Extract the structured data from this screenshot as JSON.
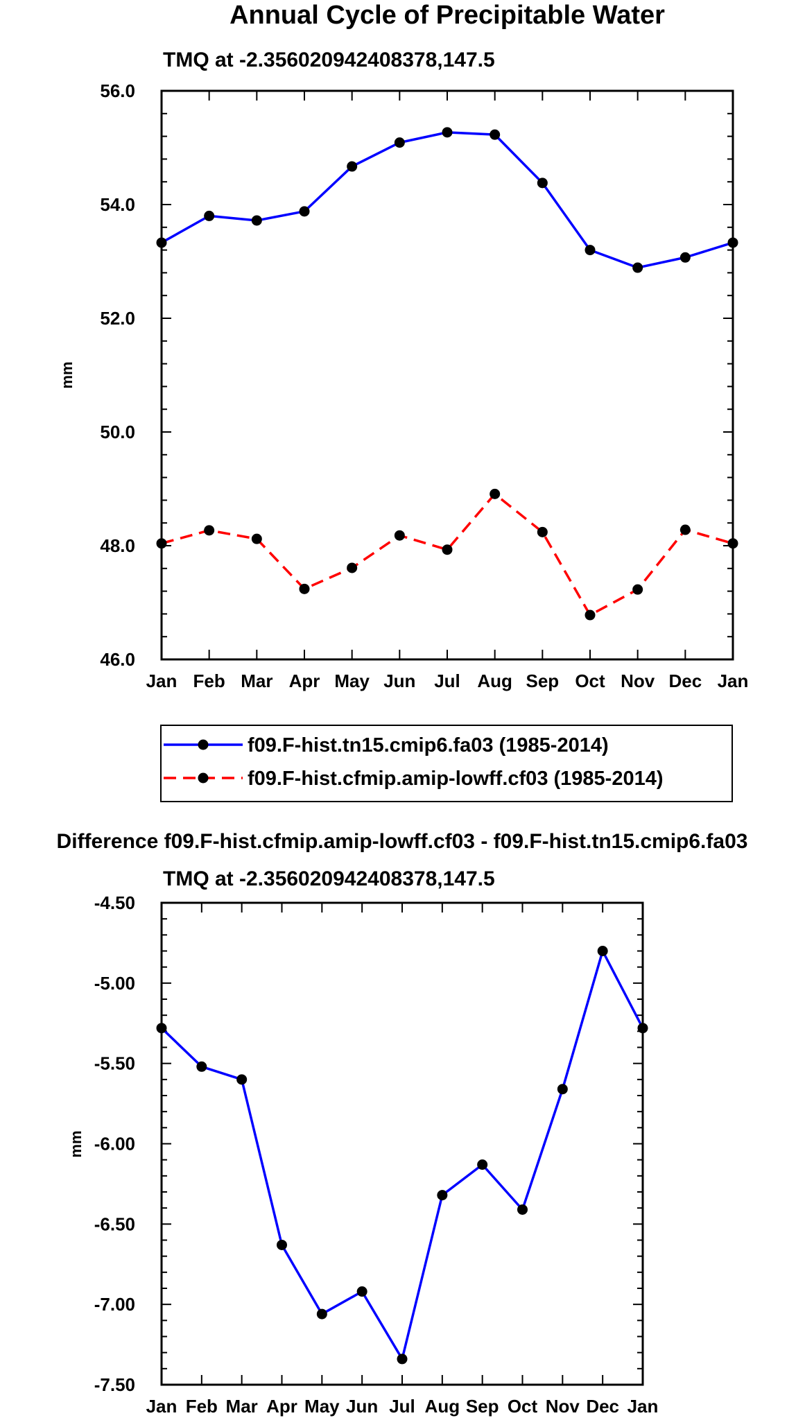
{
  "figure": {
    "title": "Annual Cycle of Precipitable Water"
  },
  "chart_data": [
    {
      "type": "line",
      "subtitle": "TMQ at -2.356020942408378,147.5",
      "ylabel": "mm",
      "xlabel": "",
      "categories": [
        "Jan",
        "Feb",
        "Mar",
        "Apr",
        "May",
        "Jun",
        "Jul",
        "Aug",
        "Sep",
        "Oct",
        "Nov",
        "Dec",
        "Jan"
      ],
      "ylim": [
        46.0,
        56.0
      ],
      "yticks": [
        "46.0",
        "48.0",
        "50.0",
        "52.0",
        "54.0",
        "56.0"
      ],
      "ytick_values": [
        46,
        48,
        50,
        52,
        54,
        56
      ],
      "grid": false,
      "legend_position": "below",
      "series": [
        {
          "name": "f09.F-hist.tn15.cmip6.fa03 (1985-2014)",
          "color": "#0000ff",
          "style": "solid",
          "values": [
            53.33,
            53.8,
            53.72,
            53.88,
            54.67,
            55.09,
            55.27,
            55.23,
            54.38,
            53.2,
            52.89,
            53.07,
            53.33
          ]
        },
        {
          "name": "f09.F-hist.cfmip.amip-lowff.cf03 (1985-2014)",
          "color": "#ff0000",
          "style": "dashed",
          "values": [
            48.04,
            48.27,
            48.12,
            47.24,
            47.61,
            48.18,
            47.93,
            48.91,
            48.24,
            46.78,
            47.23,
            48.28,
            48.04
          ]
        }
      ]
    },
    {
      "type": "line",
      "title": "Difference f09.F-hist.cfmip.amip-lowff.cf03 - f09.F-hist.tn15.cmip6.fa03",
      "subtitle": "TMQ at -2.356020942408378,147.5",
      "ylabel": "mm",
      "xlabel": "",
      "categories": [
        "Jan",
        "Feb",
        "Mar",
        "Apr",
        "May",
        "Jun",
        "Jul",
        "Aug",
        "Sep",
        "Oct",
        "Nov",
        "Dec",
        "Jan"
      ],
      "ylim": [
        -7.5,
        -4.5
      ],
      "yticks": [
        "-7.50",
        "-7.00",
        "-6.50",
        "-6.00",
        "-5.50",
        "-5.00",
        "-4.50"
      ],
      "ytick_values": [
        -7.5,
        -7.0,
        -6.5,
        -6.0,
        -5.5,
        -5.0,
        -4.5
      ],
      "grid": false,
      "series": [
        {
          "color": "#0000ff",
          "style": "solid",
          "values": [
            -5.28,
            -5.52,
            -5.6,
            -6.63,
            -7.06,
            -6.92,
            -7.34,
            -6.32,
            -6.13,
            -6.41,
            -5.66,
            -4.8,
            -5.28
          ]
        }
      ]
    }
  ]
}
